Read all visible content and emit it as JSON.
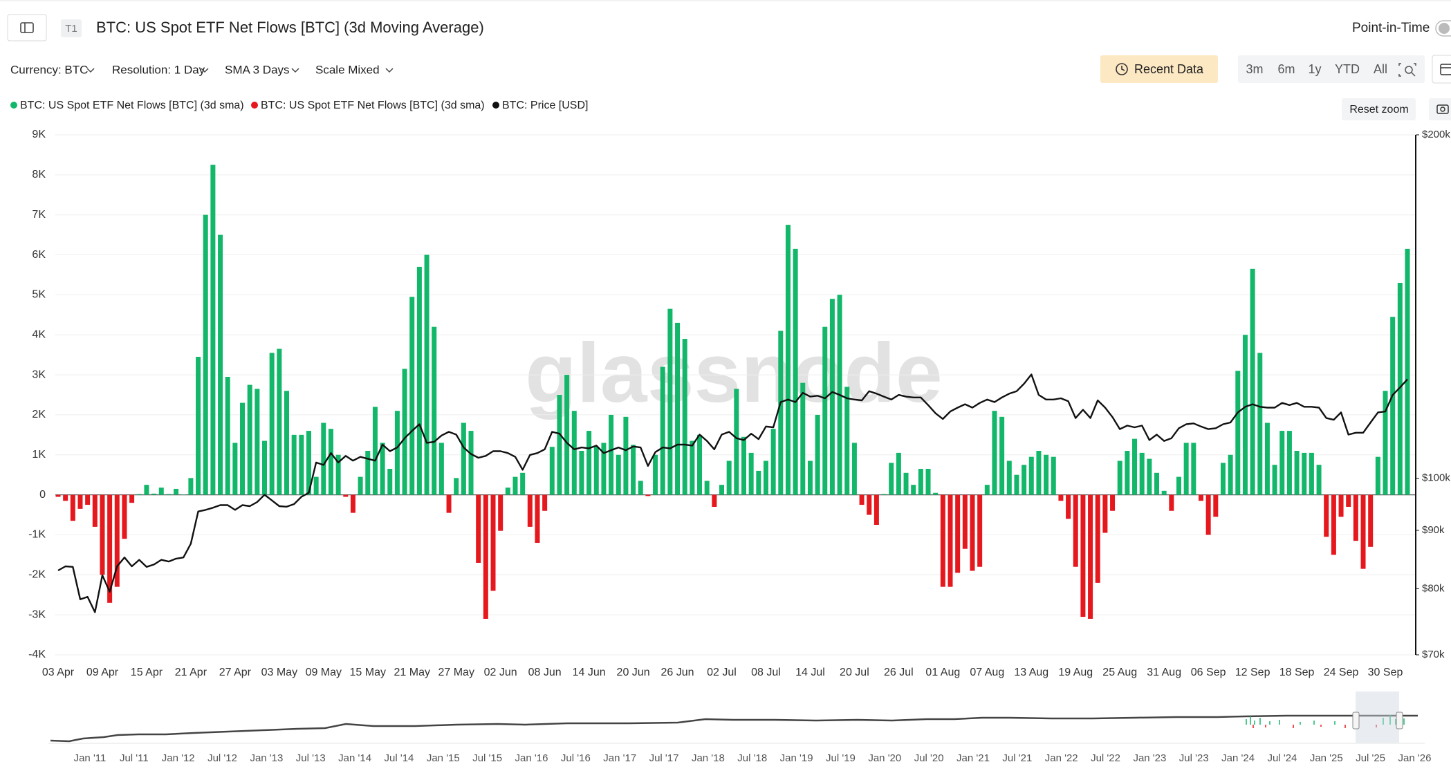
{
  "header": {
    "badge": "T1",
    "title": "BTC: US Spot ETF Net Flows [BTC] (3d Moving Average)",
    "point_in_time": "Point-in-Time"
  },
  "filters": [
    "Currency: BTC",
    "Resolution: 1 Day",
    "SMA 3 Days",
    "Scale Mixed"
  ],
  "toolbar": {
    "recent_data": "Recent Data",
    "ranges": [
      "3m",
      "6m",
      "1y",
      "YTD",
      "All"
    ],
    "reset_zoom": "Reset zoom"
  },
  "watermark": "glassnode",
  "navigator": {
    "labels": [
      "Jan '11",
      "Jul '11",
      "Jan '12",
      "Jul '12",
      "Jan '13",
      "Jul '13",
      "Jan '14",
      "Jul '14",
      "Jan '15",
      "Jul '15",
      "Jan '16",
      "Jul '16",
      "Jan '17",
      "Jul '17",
      "Jan '18",
      "Jul '18",
      "Jan '19",
      "Jul '19",
      "Jan '20",
      "Jul '20",
      "Jan '21",
      "Jul '21",
      "Jan '22",
      "Jul '22",
      "Jan '23",
      "Jul '23",
      "Jan '24",
      "Jul '24",
      "Jan '25",
      "Jul '25",
      "Jan '26"
    ]
  },
  "chart_data": {
    "type": "bar",
    "grid": true,
    "legend": "top-left",
    "y2_log": true,
    "categories": [
      "03 Apr",
      null,
      null,
      null,
      null,
      null,
      "09 Apr",
      null,
      null,
      null,
      null,
      null,
      "15 Apr",
      null,
      null,
      null,
      null,
      null,
      "21 Apr",
      null,
      null,
      null,
      null,
      null,
      "27 Apr",
      null,
      null,
      null,
      null,
      null,
      "03 May",
      null,
      null,
      null,
      null,
      null,
      "09 May",
      null,
      null,
      null,
      null,
      null,
      "15 May",
      null,
      null,
      null,
      null,
      null,
      "21 May",
      null,
      null,
      null,
      null,
      null,
      "27 May",
      null,
      null,
      null,
      null,
      null,
      "02 Jun",
      null,
      null,
      null,
      null,
      null,
      "08 Jun",
      null,
      null,
      null,
      null,
      null,
      "14 Jun",
      null,
      null,
      null,
      null,
      null,
      "20 Jun",
      null,
      null,
      null,
      null,
      null,
      "26 Jun",
      null,
      null,
      null,
      null,
      null,
      "02 Jul",
      null,
      null,
      null,
      null,
      null,
      "08 Jul",
      null,
      null,
      null,
      null,
      null,
      "14 Jul",
      null,
      null,
      null,
      null,
      null,
      "20 Jul",
      null,
      null,
      null,
      null,
      null,
      "26 Jul",
      null,
      null,
      null,
      null,
      null,
      "01 Aug",
      null,
      null,
      null,
      null,
      null,
      "07 Aug",
      null,
      null,
      null,
      null,
      null,
      "13 Aug",
      null,
      null,
      null,
      null,
      null,
      "19 Aug",
      null,
      null,
      null,
      null,
      null,
      "25 Aug",
      null,
      null,
      null,
      null,
      null,
      "31 Aug",
      null,
      null,
      null,
      null,
      null,
      "06 Sep",
      null,
      null,
      null,
      null,
      null,
      "12 Sep",
      null,
      null,
      null,
      null,
      null,
      "18 Sep",
      null,
      null,
      null,
      null,
      null,
      "24 Sep",
      null,
      null,
      null,
      null,
      null,
      "30 Sep",
      null,
      null,
      null
    ],
    "series": [
      {
        "name": "BTC: US Spot ETF Net Flows [BTC] (3d sma)",
        "color": "#12b76a",
        "values": [
          null,
          null,
          null,
          null,
          null,
          null,
          null,
          null,
          null,
          null,
          null,
          20,
          250,
          30,
          180,
          20,
          150,
          10,
          420,
          3450,
          7000,
          8250,
          6500,
          2950,
          1300,
          2300,
          2750,
          2650,
          1350,
          3550,
          3650,
          2600,
          1500,
          1500,
          1600,
          450,
          1800,
          1650,
          1000,
          null,
          null,
          450,
          1100,
          2200,
          1300,
          650,
          2100,
          3150,
          4950,
          5700,
          6000,
          4200,
          1300,
          null,
          420,
          1800,
          1600,
          null,
          null,
          null,
          null,
          180,
          450,
          550,
          null,
          null,
          null,
          1200,
          2500,
          3000,
          2100,
          1100,
          1600,
          1200,
          1300,
          2000,
          1000,
          1950,
          1250,
          350,
          null,
          1000,
          3200,
          4650,
          4300,
          3900,
          1350,
          1500,
          350,
          null,
          250,
          850,
          2650,
          1450,
          1050,
          600,
          850,
          1650,
          4100,
          6750,
          6150,
          2800,
          850,
          2000,
          4200,
          4900,
          5000,
          2700,
          1300,
          null,
          null,
          null,
          20,
          800,
          1050,
          550,
          250,
          650,
          650,
          50,
          null,
          null,
          null,
          null,
          null,
          null,
          250,
          2100,
          1950,
          850,
          500,
          750,
          950,
          1100,
          1000,
          950,
          null,
          null,
          null,
          null,
          null,
          null,
          null,
          null,
          850,
          1100,
          1400,
          1050,
          900,
          550,
          100,
          null,
          450,
          1300,
          1300,
          null,
          null,
          null,
          800,
          1000,
          3100,
          4000,
          5650,
          3550,
          1800,
          750,
          1600,
          1600,
          1100,
          1050,
          1050,
          750,
          null,
          null,
          null,
          null,
          null,
          null,
          null,
          950,
          2600,
          4450,
          5300,
          6150
        ]
      },
      {
        "name": "BTC: US Spot ETF Net Flows [BTC] (3d sma)",
        "color": "#e5181e",
        "values": [
          -50,
          -150,
          -650,
          -350,
          -250,
          -800,
          -2000,
          -2700,
          -2300,
          -1100,
          -200,
          null,
          null,
          null,
          null,
          null,
          null,
          null,
          null,
          null,
          null,
          null,
          null,
          null,
          null,
          null,
          null,
          null,
          null,
          null,
          null,
          null,
          null,
          null,
          null,
          null,
          null,
          null,
          null,
          -50,
          -450,
          null,
          null,
          null,
          null,
          null,
          null,
          null,
          null,
          null,
          null,
          null,
          null,
          -450,
          null,
          null,
          null,
          -1700,
          -3100,
          -2400,
          -900,
          null,
          null,
          null,
          -800,
          -1200,
          -400,
          null,
          null,
          null,
          null,
          null,
          null,
          null,
          null,
          null,
          null,
          null,
          null,
          null,
          -30,
          null,
          null,
          null,
          null,
          null,
          null,
          null,
          null,
          -300,
          null,
          null,
          null,
          null,
          null,
          null,
          null,
          null,
          null,
          null,
          null,
          null,
          null,
          null,
          null,
          null,
          null,
          null,
          null,
          -250,
          -500,
          -750,
          null,
          null,
          null,
          null,
          null,
          null,
          null,
          null,
          -2300,
          -2300,
          -1950,
          -1350,
          -1900,
          -1800,
          null,
          null,
          null,
          null,
          null,
          null,
          null,
          null,
          null,
          null,
          -150,
          -600,
          -1800,
          -3050,
          -3100,
          -2200,
          -950,
          -400,
          null,
          null,
          null,
          null,
          null,
          null,
          null,
          -400,
          null,
          null,
          null,
          -150,
          -1000,
          -550,
          null,
          null,
          null,
          null,
          null,
          null,
          null,
          null,
          null,
          null,
          null,
          null,
          null,
          null,
          -1050,
          -1500,
          -550,
          -300,
          -1150,
          -1850,
          -1300,
          null,
          null,
          null,
          null,
          null
        ]
      },
      {
        "name": "BTC: Price [USD]",
        "color": "#111111",
        "axis": "y2",
        "type": "line",
        "values": [
          83000,
          83700,
          83600,
          78300,
          78700,
          76300,
          82200,
          79500,
          83700,
          85200,
          83700,
          84800,
          83600,
          84000,
          84800,
          84500,
          85000,
          85200,
          87600,
          93500,
          93800,
          94200,
          94700,
          94700,
          93800,
          94700,
          94500,
          95300,
          96700,
          95600,
          94500,
          94400,
          94900,
          96300,
          97100,
          103200,
          102700,
          105200,
          103200,
          104600,
          103600,
          104400,
          104000,
          103600,
          107000,
          105600,
          106400,
          108400,
          110000,
          111500,
          107400,
          107600,
          109000,
          109800,
          109200,
          106400,
          105000,
          104200,
          104600,
          105600,
          105600,
          105200,
          104400,
          101700,
          104800,
          105200,
          106000,
          109800,
          109400,
          107400,
          106000,
          106400,
          106200,
          106800,
          105200,
          105800,
          106400,
          105800,
          106600,
          106400,
          102500,
          105400,
          106400,
          106200,
          107000,
          107000,
          106800,
          109200,
          107800,
          106000,
          109200,
          109800,
          108400,
          108000,
          109400,
          108200,
          111000,
          110800,
          116600,
          117200,
          116600,
          118800,
          117900,
          118100,
          117500,
          119000,
          118300,
          117500,
          117200,
          117000,
          119200,
          118600,
          117900,
          117200,
          118300,
          117900,
          117700,
          117700,
          115900,
          114000,
          112700,
          114400,
          115300,
          116100,
          115300,
          116400,
          117200,
          116600,
          117700,
          118600,
          119200,
          121000,
          123300,
          118300,
          117200,
          117200,
          117500,
          116800,
          112900,
          114800,
          112900,
          117000,
          115300,
          113100,
          110400,
          111200,
          110800,
          111200,
          108000,
          109200,
          107800,
          108400,
          110600,
          111500,
          111700,
          111000,
          110400,
          110600,
          111500,
          111900,
          114200,
          115500,
          116100,
          115500,
          115300,
          115300,
          116400,
          115900,
          116400,
          115500,
          115500,
          115300,
          112900,
          112500,
          114200,
          109200,
          109600,
          109600,
          111900,
          114200,
          114400,
          118300,
          120100,
          122100
        ]
      }
    ],
    "ylim": [
      -4000,
      9000
    ],
    "yticks": [
      {
        "value": -4000,
        "label": "-4K"
      },
      {
        "value": -3000,
        "label": "-3K"
      },
      {
        "value": -2000,
        "label": "-2K"
      },
      {
        "value": -1000,
        "label": "-1K"
      },
      0,
      {
        "value": 1000,
        "label": "1K"
      },
      {
        "value": 2000,
        "label": "2K"
      },
      {
        "value": 3000,
        "label": "3K"
      },
      {
        "value": 4000,
        "label": "4K"
      },
      {
        "value": 5000,
        "label": "5K"
      },
      {
        "value": 6000,
        "label": "6K"
      },
      {
        "value": 7000,
        "label": "7K"
      },
      {
        "value": 8000,
        "label": "8K"
      },
      {
        "value": 9000,
        "label": "9K"
      }
    ],
    "y2lim": [
      70000,
      200000
    ],
    "y2ticks": [
      {
        "value": 70000,
        "label": "$70k"
      },
      {
        "value": 80000,
        "label": "$80k"
      },
      {
        "value": 90000,
        "label": "$90k"
      },
      {
        "value": 100000,
        "label": "$100k"
      },
      {
        "value": 200000,
        "label": "$200k"
      }
    ]
  }
}
